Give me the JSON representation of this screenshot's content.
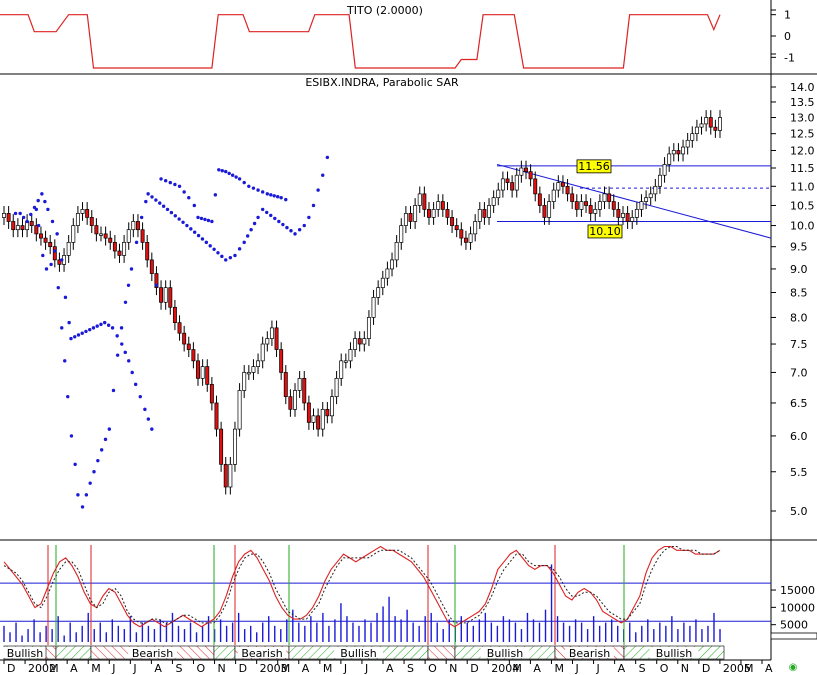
{
  "chart_data": [
    {
      "type": "line",
      "title": "TITO (2.0000)",
      "y_ticks": [
        "1",
        "0",
        "-1"
      ],
      "ylim": [
        -1.5,
        1.5
      ],
      "series": [
        {
          "name": "TITO",
          "color": "#dd2222",
          "points": [
            [
              0,
              1
            ],
            [
              0.9,
              1
            ],
            [
              1.1,
              0.2
            ],
            [
              1.8,
              0.2
            ],
            [
              2.2,
              1
            ],
            [
              2.8,
              1
            ],
            [
              3.0,
              -1.5
            ],
            [
              6.8,
              -1.5
            ],
            [
              7.0,
              1
            ],
            [
              7.8,
              1
            ],
            [
              8.0,
              0.2
            ],
            [
              9.9,
              0.2
            ],
            [
              10.1,
              1
            ],
            [
              11.2,
              1
            ],
            [
              11.4,
              -1.5
            ],
            [
              14.6,
              -1.5
            ],
            [
              14.8,
              -1.1
            ],
            [
              15.3,
              -1.1
            ],
            [
              15.5,
              1
            ],
            [
              16.5,
              1
            ],
            [
              16.8,
              -1.5
            ],
            [
              20.0,
              -1.5
            ],
            [
              20.2,
              1
            ],
            [
              22.7,
              1
            ],
            [
              22.9,
              0.3
            ],
            [
              23.1,
              1
            ]
          ]
        }
      ]
    },
    {
      "type": "candlestick",
      "title": "ESIBX.INDRA, Parabolic SAR",
      "y_ticks": [
        "14.0",
        "13.5",
        "13.0",
        "12.5",
        "12.0",
        "11.5",
        "11.0",
        "10.5",
        "10.0",
        "9.5",
        "9.0",
        "8.5",
        "8.0",
        "7.5",
        "7.0",
        "6.5",
        "6.0",
        "5.5",
        "5.0"
      ],
      "log_scale": true,
      "ylim": [
        4.7,
        14.3
      ],
      "annotations": [
        "11.56",
        "10.10"
      ],
      "levels": [
        11.56,
        10.1
      ],
      "dashed_level": 10.95,
      "trendline": [
        [
          16.5,
          11.6
        ],
        [
          25.0,
          9.7
        ]
      ],
      "close": [
        10.3,
        10.1,
        9.9,
        10.0,
        9.9,
        10.1,
        10.0,
        9.8,
        9.7,
        9.6,
        9.5,
        9.2,
        9.1,
        9.3,
        9.6,
        10.0,
        10.3,
        10.4,
        10.2,
        10.0,
        9.8,
        9.8,
        9.7,
        9.6,
        9.4,
        9.3,
        9.6,
        9.9,
        10.1,
        9.9,
        9.6,
        9.2,
        8.9,
        8.6,
        8.3,
        8.6,
        8.2,
        7.9,
        7.7,
        7.5,
        7.4,
        7.2,
        6.9,
        7.1,
        6.8,
        6.5,
        6.1,
        5.6,
        5.3,
        5.6,
        6.1,
        6.7,
        7.0,
        7.0,
        7.1,
        7.2,
        7.5,
        7.6,
        7.8,
        7.4,
        7.0,
        6.6,
        6.4,
        6.7,
        6.9,
        6.5,
        6.2,
        6.3,
        6.1,
        6.4,
        6.3,
        6.6,
        6.9,
        7.2,
        7.2,
        7.4,
        7.6,
        7.5,
        7.6,
        8.0,
        8.4,
        8.6,
        8.8,
        9.0,
        9.2,
        9.6,
        10.0,
        10.3,
        10.1,
        10.5,
        10.8,
        10.4,
        10.2,
        10.4,
        10.6,
        10.4,
        10.2,
        10.0,
        9.9,
        9.7,
        9.6,
        9.8,
        10.1,
        10.4,
        10.2,
        10.5,
        10.7,
        10.9,
        11.2,
        11.1,
        10.9,
        11.3,
        11.5,
        11.4,
        11.2,
        10.8,
        10.5,
        10.2,
        10.6,
        10.9,
        11.1,
        11.0,
        10.8,
        10.6,
        10.4,
        10.6,
        10.5,
        10.3,
        10.4,
        10.6,
        10.8,
        10.6,
        10.4,
        10.2,
        10.3,
        10.1,
        10.2,
        10.4,
        10.6,
        10.7,
        10.8,
        11.0,
        11.3,
        11.6,
        11.9,
        12.0,
        11.9,
        12.1,
        12.3,
        12.5,
        12.7,
        12.8,
        13.0,
        12.7,
        12.6,
        13.0
      ],
      "sar_up": [
        [
          7.0,
          10.4
        ],
        [
          7.5,
          10.0
        ],
        [
          8.4,
          9.3
        ],
        [
          9.2,
          9.0
        ],
        [
          10.2,
          9.1
        ],
        [
          11.0,
          9.4
        ],
        [
          12.5,
          7.8
        ],
        [
          13.8,
          6.6
        ],
        [
          14.6,
          6.0
        ],
        [
          15.4,
          5.6
        ],
        [
          16.0,
          5.2
        ],
        [
          17.0,
          5.05
        ],
        [
          22.8,
          6.1
        ],
        [
          24.6,
          7.3
        ],
        [
          26.3,
          8.3
        ],
        [
          27.6,
          9.0
        ],
        [
          28.7,
          9.6
        ],
        [
          29.8,
          10.2
        ],
        [
          30.7,
          10.6
        ],
        [
          31.2,
          10.8
        ],
        [
          48.0,
          9.2
        ],
        [
          50.0,
          9.3
        ],
        [
          52.0,
          9.6
        ],
        [
          53.5,
          9.9
        ],
        [
          55.0,
          10.2
        ],
        [
          56.0,
          10.4
        ],
        [
          63.0,
          9.8
        ],
        [
          65.0,
          10.0
        ],
        [
          66.0,
          10.2
        ],
        [
          67.0,
          10.5
        ],
        [
          68.0,
          10.9
        ],
        [
          69.0,
          11.3
        ],
        [
          70.0,
          11.8
        ],
        [
          71.0,
          12.2
        ]
      ],
      "sar_down": [
        [
          2.5,
          10.3
        ],
        [
          3.5,
          10.3
        ],
        [
          5.0,
          10.1
        ],
        [
          8.2,
          10.8
        ],
        [
          9.5,
          10.4
        ],
        [
          11.5,
          9.8
        ],
        [
          12.5,
          9.2
        ],
        [
          13.3,
          8.4
        ],
        [
          14.1,
          7.9
        ],
        [
          14.5,
          7.6
        ],
        [
          21.8,
          7.9
        ],
        [
          23.5,
          7.8
        ],
        [
          25.5,
          7.5
        ],
        [
          27.0,
          7.2
        ],
        [
          28.5,
          6.8
        ],
        [
          30.5,
          6.4
        ],
        [
          32.0,
          6.1
        ],
        [
          34.0,
          11.2
        ],
        [
          36.0,
          11.1
        ],
        [
          38.0,
          11.0
        ],
        [
          40.0,
          10.7
        ],
        [
          41.2,
          10.5
        ],
        [
          42.0,
          10.2
        ],
        [
          45.0,
          10.1
        ],
        [
          46.5,
          11.45
        ],
        [
          48.0,
          11.4
        ],
        [
          51.0,
          11.2
        ],
        [
          53.0,
          11.0
        ],
        [
          55.0,
          10.9
        ],
        [
          57.0,
          10.8
        ],
        [
          60.0,
          10.7
        ],
        [
          62.0,
          10.6
        ]
      ]
    },
    {
      "type": "line",
      "title": "",
      "y_ticks": [
        "15000",
        "10000",
        "5000"
      ],
      "ylim": [
        0,
        28000
      ],
      "series": [
        {
          "name": "",
          "color": "#dd2222",
          "values": [
            21,
            19,
            17,
            15,
            12,
            9,
            10,
            14,
            18,
            21,
            22,
            20,
            17,
            13,
            10,
            9,
            12,
            14,
            13,
            10,
            7,
            5,
            4,
            5,
            6,
            5,
            4,
            5,
            6,
            7,
            6,
            5,
            4,
            5,
            6,
            8,
            12,
            17,
            21,
            23,
            24,
            22,
            19,
            16,
            12,
            9,
            7,
            6,
            6,
            7,
            9,
            12,
            16,
            19,
            21,
            23,
            22,
            21,
            22,
            23,
            24,
            25,
            24,
            24,
            23,
            22,
            21,
            19,
            17,
            14,
            11,
            8,
            5,
            4,
            5,
            6,
            7,
            8,
            10,
            14,
            19,
            21,
            23,
            24,
            22,
            20,
            19,
            20,
            20,
            18,
            15,
            12,
            11,
            13,
            14,
            13,
            11,
            8,
            7,
            6,
            5,
            6,
            9,
            12,
            18,
            22,
            24,
            25,
            25,
            24,
            24,
            24,
            23,
            23,
            23,
            23,
            24
          ]
        },
        {
          "name": "",
          "color": "#222222",
          "dashed": true,
          "values": [
            20,
            19,
            18,
            16,
            13,
            10,
            9,
            12,
            16,
            19,
            21,
            21,
            19,
            15,
            11,
            9,
            10,
            13,
            14,
            12,
            8,
            6,
            5,
            5,
            6,
            6,
            5,
            5,
            6,
            7,
            7,
            6,
            5,
            5,
            5,
            7,
            10,
            15,
            19,
            22,
            23,
            23,
            21,
            18,
            14,
            11,
            8,
            7,
            6,
            6,
            8,
            10,
            14,
            17,
            20,
            22,
            22,
            22,
            22,
            22,
            23,
            24,
            24,
            24,
            24,
            23,
            22,
            20,
            18,
            16,
            13,
            10,
            7,
            5,
            5,
            5,
            6,
            7,
            9,
            12,
            16,
            19,
            21,
            23,
            23,
            21,
            20,
            20,
            20,
            19,
            17,
            14,
            12,
            12,
            13,
            13,
            12,
            10,
            8,
            7,
            6,
            6,
            8,
            10,
            15,
            19,
            22,
            24,
            25,
            25,
            24,
            24,
            24,
            23,
            23,
            23,
            24
          ]
        }
      ],
      "levels": [
        17000,
        6000
      ],
      "volume": [
        5,
        3,
        6,
        2,
        4,
        7,
        3,
        5,
        4,
        8,
        2,
        6,
        3,
        5,
        9,
        4,
        6,
        3,
        7,
        5,
        4,
        8,
        3,
        6,
        5,
        4,
        7,
        6,
        9,
        5,
        4,
        6,
        3,
        5,
        8,
        4,
        7,
        5,
        6,
        9,
        4,
        5,
        3,
        6,
        8,
        5,
        4,
        7,
        10,
        6,
        5,
        8,
        6,
        9,
        5,
        7,
        12,
        8,
        6,
        5,
        7,
        6,
        9,
        11,
        14,
        8,
        7,
        10,
        6,
        5,
        8,
        9,
        6,
        4,
        7,
        5,
        8,
        6,
        5,
        7,
        9,
        6,
        5,
        8,
        7,
        6,
        4,
        9,
        7,
        6,
        10,
        24,
        8,
        6,
        5,
        7,
        6,
        4,
        8,
        5,
        6,
        7,
        5,
        4,
        6,
        3,
        5,
        7,
        4,
        6,
        5,
        8,
        4,
        6,
        5,
        7,
        4,
        5,
        9,
        4
      ],
      "volume_max": 30000,
      "signal_lines": [
        {
          "x": 48,
          "color": "#dd2222"
        },
        {
          "x": 56,
          "color": "#22aa22"
        },
        {
          "x": 91,
          "color": "#dd2222"
        },
        {
          "x": 214,
          "color": "#22aa22"
        },
        {
          "x": 235,
          "color": "#dd2222"
        },
        {
          "x": 289,
          "color": "#22aa22"
        },
        {
          "x": 428,
          "color": "#dd2222"
        },
        {
          "x": 455,
          "color": "#22aa22"
        },
        {
          "x": 555,
          "color": "#dd2222"
        },
        {
          "x": 624,
          "color": "#22aa22"
        }
      ],
      "trend_bands": [
        {
          "label": "Bullish",
          "x1": 4,
          "x2": 46,
          "kind": "bull",
          "text": true
        },
        {
          "label": "",
          "x1": 46,
          "x2": 56,
          "kind": "bear",
          "text": false
        },
        {
          "label": "",
          "x1": 56,
          "x2": 91,
          "kind": "bull",
          "text": false
        },
        {
          "label": "Bearish",
          "x1": 91,
          "x2": 214,
          "kind": "bear",
          "text": true
        },
        {
          "label": "",
          "x1": 214,
          "x2": 235,
          "kind": "bull",
          "text": false
        },
        {
          "label": "Bearish",
          "x1": 235,
          "x2": 289,
          "kind": "bear",
          "text": true
        },
        {
          "label": "Bullish",
          "x1": 289,
          "x2": 428,
          "kind": "bull",
          "text": true
        },
        {
          "label": "",
          "x1": 428,
          "x2": 455,
          "kind": "bear",
          "text": false
        },
        {
          "label": "Bullish",
          "x1": 455,
          "x2": 555,
          "kind": "bull",
          "text": true
        },
        {
          "label": "Bearish",
          "x1": 555,
          "x2": 624,
          "kind": "bear",
          "text": true
        },
        {
          "label": "Bullish",
          "x1": 624,
          "x2": 724,
          "kind": "bull",
          "text": true
        }
      ]
    }
  ],
  "x_axis": {
    "labels": [
      "D",
      "2002",
      "M",
      "A",
      "M",
      "J",
      "J",
      "A",
      "S",
      "O",
      "N",
      "D",
      "2003",
      "M",
      "A",
      "M",
      "J",
      "J",
      "A",
      "S",
      "O",
      "N",
      "D",
      "2004",
      "M",
      "A",
      "M",
      "J",
      "J",
      "A",
      "S",
      "O",
      "N",
      "D",
      "2005",
      "M",
      "A"
    ]
  },
  "colors": {
    "up_candle": "#ffffff",
    "down_candle": "#e01010",
    "sar": "#1a1ad8",
    "levels": "#1a1ad8",
    "annotation_bg": "#ffff00"
  }
}
